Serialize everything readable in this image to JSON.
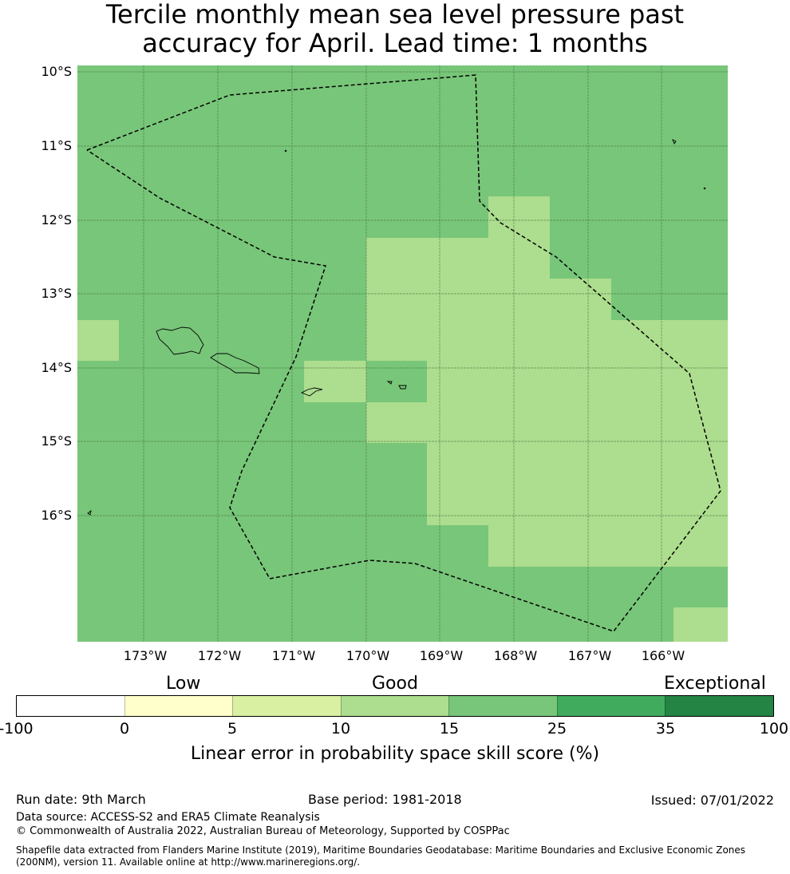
{
  "title_line1": "Tercile monthly mean sea level pressure past",
  "title_line2": "accuracy for April. Lead time: 1 months",
  "map": {
    "lat_labels": [
      "10°S",
      "11°S",
      "12°S",
      "13°S",
      "14°S",
      "15°S",
      "16°S"
    ],
    "lon_labels": [
      "173°W",
      "172°W",
      "171°W",
      "170°W",
      "169°W",
      "168°W",
      "167°W",
      "166°W"
    ],
    "lon_range": [
      -173.9,
      -165.1
    ],
    "lat_range": [
      -17.7,
      -9.9
    ],
    "background_category_color": "#78c679",
    "highlight_category_color": "#addd8e"
  },
  "colorbar": {
    "categories": [
      "Low",
      "Good",
      "Exceptional"
    ],
    "ticks": [
      "-100",
      "0",
      "5",
      "10",
      "15",
      "25",
      "35",
      "100"
    ],
    "colors": [
      "#ffffff",
      "#ffffcc",
      "#d9f0a3",
      "#addd8e",
      "#78c679",
      "#41ab5d",
      "#238443"
    ],
    "label": "Linear error in probability space skill score (%)"
  },
  "footer": {
    "run_date": "Run date: 9th March",
    "base_period": "Base period: 1981-2018",
    "issued": "Issued: 07/01/2022",
    "data_source": "Data source: ACCESS-S2 and ERA5 Climate Reanalysis",
    "copyright": "© Commonwealth of Australia 2022, Australian Bureau of Meteorology, Supported by COSPPac",
    "shapefile_line1": "Shapefile data extracted from Flanders Marine Institute (2019), Maritime Boundaries Geodatabase: Maritime Boundaries and Exclusive Economic Zones",
    "shapefile_line2": "(200NM), version 11. Available online at http://www.marineregions.org/."
  }
}
